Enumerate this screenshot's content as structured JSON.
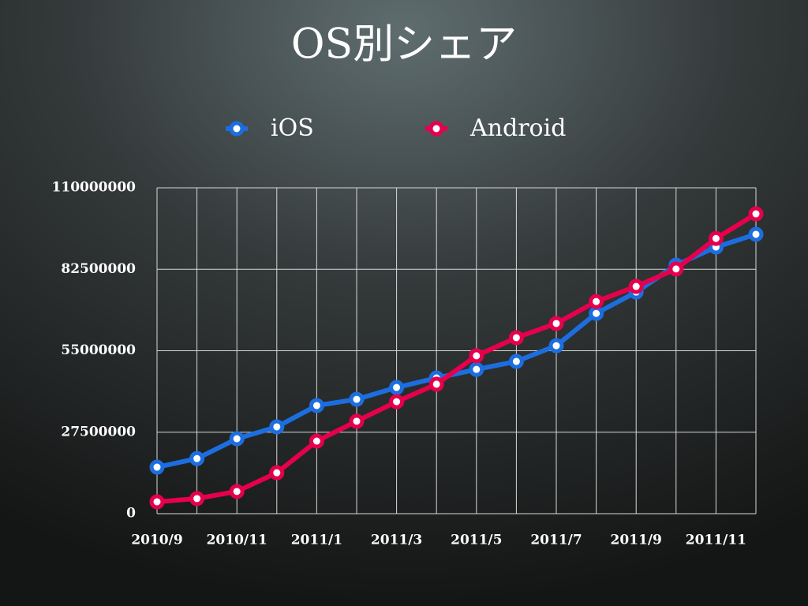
{
  "chart_data": {
    "type": "line",
    "title": "OS別シェア",
    "categories": [
      "2010/9",
      null,
      "2010/11",
      null,
      "2011/1",
      null,
      "2011/3",
      null,
      "2011/5",
      null,
      "2011/7",
      null,
      "2011/9",
      null,
      "2011/11",
      null
    ],
    "series": [
      {
        "name": "iOS",
        "color": "#1c6ee0",
        "values": [
          15700000,
          18600000,
          25300000,
          29300000,
          36500000,
          38600000,
          42600000,
          45800000,
          48700000,
          51400000,
          56700000,
          67600000,
          74800000,
          83900000,
          90000000,
          94300000
        ]
      },
      {
        "name": "Android",
        "color": "#e6004c",
        "values": [
          4000000,
          5100000,
          7500000,
          13800000,
          24500000,
          31200000,
          37800000,
          43700000,
          53300000,
          59400000,
          64200000,
          71600000,
          76700000,
          82600000,
          92900000,
          101200000
        ]
      }
    ],
    "ylim": [
      0,
      110000000
    ],
    "yticks": [
      0,
      27500000,
      55000000,
      82500000,
      110000000
    ],
    "grid": true
  }
}
